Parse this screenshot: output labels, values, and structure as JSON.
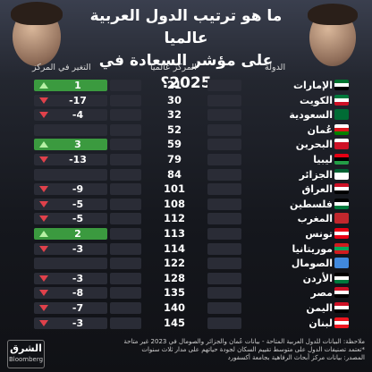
{
  "title_lines": [
    "ما هو ترتيب الدول العربية عالميا",
    "على مؤشر السعادة في 2025؟"
  ],
  "headers": {
    "country": "الدولة",
    "rank": "المركز عالميا",
    "change": "التغير في المركز"
  },
  "colors": {
    "up": "#3b9a3f",
    "down_arrow": "#e0414b",
    "neutral": "#2a2c36"
  },
  "chart_data": {
    "type": "table",
    "columns": [
      "الدولة",
      "المركز عالميا",
      "التغير في المركز"
    ],
    "rows": [
      {
        "country": "الإمارات",
        "rank": "21",
        "change": "1",
        "direction": "up"
      },
      {
        "country": "الكويت",
        "rank": "30",
        "change": "-17",
        "direction": "down"
      },
      {
        "country": "السعودية",
        "rank": "32",
        "change": "-4",
        "direction": "down"
      },
      {
        "country": "عُمان",
        "rank": "52",
        "change": "",
        "direction": "none"
      },
      {
        "country": "البحرين",
        "rank": "59",
        "change": "3",
        "direction": "up"
      },
      {
        "country": "ليبيا",
        "rank": "79",
        "change": "-13",
        "direction": "down"
      },
      {
        "country": "الجزائر",
        "rank": "84",
        "change": "",
        "direction": "none"
      },
      {
        "country": "العراق",
        "rank": "101",
        "change": "-9",
        "direction": "down"
      },
      {
        "country": "فلسطين",
        "rank": "108",
        "change": "-5",
        "direction": "down"
      },
      {
        "country": "المغرب",
        "rank": "112",
        "change": "-5",
        "direction": "down"
      },
      {
        "country": "تونس",
        "rank": "113",
        "change": "2",
        "direction": "up"
      },
      {
        "country": "موريتانيا",
        "rank": "114",
        "change": "-3",
        "direction": "down"
      },
      {
        "country": "الصومال",
        "rank": "122",
        "change": "",
        "direction": "none"
      },
      {
        "country": "الأردن",
        "rank": "128",
        "change": "-3",
        "direction": "down"
      },
      {
        "country": "مصر",
        "rank": "135",
        "change": "-8",
        "direction": "down"
      },
      {
        "country": "اليمن",
        "rank": "140",
        "change": "-7",
        "direction": "down"
      },
      {
        "country": "لبنان",
        "rank": "145",
        "change": "-3",
        "direction": "down"
      }
    ]
  },
  "flags": [
    [
      "#00732f",
      "#ffffff",
      "#000000"
    ],
    [
      "#007a3d",
      "#ffffff",
      "#ce1126"
    ],
    [
      "#006c35",
      "#006c35",
      "#006c35"
    ],
    [
      "#ffffff",
      "#db161b",
      "#008000"
    ],
    [
      "#ffffff",
      "#ce1126",
      "#ce1126"
    ],
    [
      "#e70013",
      "#000000",
      "#239e46"
    ],
    [
      "#006233",
      "#ffffff",
      "#ffffff"
    ],
    [
      "#ce1126",
      "#ffffff",
      "#000000"
    ],
    [
      "#000000",
      "#ffffff",
      "#007a3d"
    ],
    [
      "#c1272d",
      "#c1272d",
      "#c1272d"
    ],
    [
      "#e70013",
      "#ffffff",
      "#e70013"
    ],
    [
      "#d01c1f",
      "#00a95c",
      "#d01c1f"
    ],
    [
      "#4189dd",
      "#4189dd",
      "#4189dd"
    ],
    [
      "#000000",
      "#ffffff",
      "#007a3d"
    ],
    [
      "#ce1126",
      "#ffffff",
      "#000000"
    ],
    [
      "#ce1126",
      "#ffffff",
      "#000000"
    ],
    [
      "#ee161f",
      "#ffffff",
      "#ee161f"
    ]
  ],
  "footer": {
    "logo_top": "الشرق",
    "logo_bottom": "Bloomberg",
    "notes": [
      "ملاحظة: البيانات للدول العربية المتاحة - بيانات عُمان والجزائر والصومال في 2023 غير متاحة",
      "*تعتمد تصنيفات الدول على متوسط تقييم السكان لجودة حياتهم على مدار ثلاث سنوات",
      "المصدر: بيانات مركز أبحاث الرفاهية بجامعة أكسفورد"
    ]
  }
}
